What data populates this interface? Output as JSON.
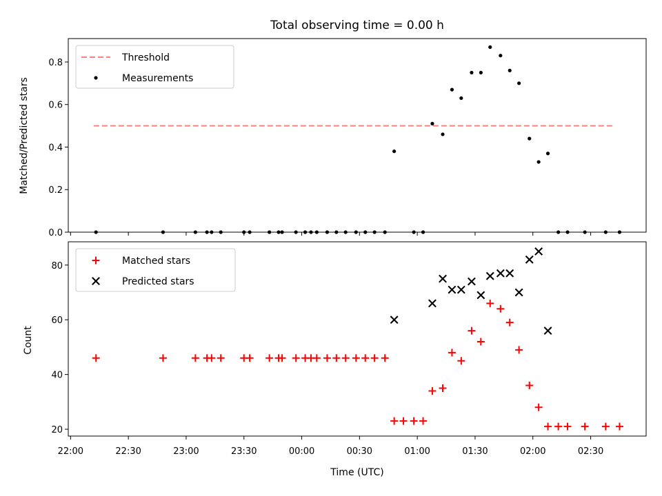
{
  "chart_data": [
    {
      "type": "scatter",
      "title": "Total observing time = 0.00 h",
      "xlabel": "",
      "ylabel": "Matched/Predicted stars",
      "x_unit": "time of day (UTC), hours continuing past midnight",
      "xlim": [
        21.98,
        26.98
      ],
      "ylim": [
        0,
        0.91
      ],
      "yticks": [
        "0.0",
        "0.2",
        "0.4",
        "0.6",
        "0.8"
      ],
      "legend": {
        "position": "top-left",
        "entries": [
          "Threshold",
          "Measurements"
        ]
      },
      "threshold": {
        "name": "Threshold",
        "value": 0.5,
        "x_range": [
          22.2,
          26.7
        ],
        "color": "#ff7f7f",
        "style": "dashed"
      },
      "series": [
        {
          "name": "Measurements",
          "color": "#000000",
          "marker": "dot",
          "points": [
            [
              22.22,
              0.0
            ],
            [
              22.8,
              0.0
            ],
            [
              23.08,
              0.0
            ],
            [
              23.18,
              0.0
            ],
            [
              23.22,
              0.0
            ],
            [
              23.3,
              0.0
            ],
            [
              23.5,
              0.0
            ],
            [
              23.55,
              0.0
            ],
            [
              23.72,
              0.0
            ],
            [
              23.8,
              0.0
            ],
            [
              23.83,
              0.0
            ],
            [
              23.95,
              0.0
            ],
            [
              24.03,
              0.0
            ],
            [
              24.08,
              0.0
            ],
            [
              24.13,
              0.0
            ],
            [
              24.22,
              0.0
            ],
            [
              24.3,
              0.0
            ],
            [
              24.38,
              0.0
            ],
            [
              24.47,
              0.0
            ],
            [
              24.55,
              0.0
            ],
            [
              24.63,
              0.0
            ],
            [
              24.72,
              0.0
            ],
            [
              24.8,
              0.38
            ],
            [
              24.97,
              0.0
            ],
            [
              25.05,
              0.0
            ],
            [
              25.13,
              0.51
            ],
            [
              25.22,
              0.46
            ],
            [
              25.3,
              0.67
            ],
            [
              25.38,
              0.63
            ],
            [
              25.47,
              0.75
            ],
            [
              25.55,
              0.75
            ],
            [
              25.63,
              0.87
            ],
            [
              25.72,
              0.83
            ],
            [
              25.8,
              0.76
            ],
            [
              25.88,
              0.7
            ],
            [
              25.97,
              0.44
            ],
            [
              26.05,
              0.33
            ],
            [
              26.13,
              0.37
            ],
            [
              26.22,
              0.0
            ],
            [
              26.3,
              0.0
            ],
            [
              26.45,
              0.0
            ],
            [
              26.63,
              0.0
            ],
            [
              26.75,
              0.0
            ]
          ]
        }
      ]
    },
    {
      "type": "scatter",
      "title": "",
      "xlabel": "Time (UTC)",
      "ylabel": "Count",
      "x_unit": "time of day (UTC), hours continuing past midnight",
      "xlim": [
        21.98,
        26.98
      ],
      "ylim": [
        17.5,
        88.5
      ],
      "yticks": [
        "20",
        "40",
        "60",
        "80"
      ],
      "xticks": [
        {
          "value": 22.0,
          "label": "22:00"
        },
        {
          "value": 22.5,
          "label": "22:30"
        },
        {
          "value": 23.0,
          "label": "23:00"
        },
        {
          "value": 23.5,
          "label": "23:30"
        },
        {
          "value": 24.0,
          "label": "00:00"
        },
        {
          "value": 24.5,
          "label": "00:30"
        },
        {
          "value": 25.0,
          "label": "01:00"
        },
        {
          "value": 25.5,
          "label": "01:30"
        },
        {
          "value": 26.0,
          "label": "02:00"
        },
        {
          "value": 26.5,
          "label": "02:30"
        }
      ],
      "legend": {
        "position": "top-left",
        "entries": [
          "Matched stars",
          "Predicted stars"
        ]
      },
      "series": [
        {
          "name": "Matched stars",
          "color": "#ff0000",
          "marker": "plus",
          "points": [
            [
              22.22,
              46
            ],
            [
              22.8,
              46
            ],
            [
              23.08,
              46
            ],
            [
              23.18,
              46
            ],
            [
              23.22,
              46
            ],
            [
              23.3,
              46
            ],
            [
              23.5,
              46
            ],
            [
              23.55,
              46
            ],
            [
              23.72,
              46
            ],
            [
              23.8,
              46
            ],
            [
              23.83,
              46
            ],
            [
              23.95,
              46
            ],
            [
              24.03,
              46
            ],
            [
              24.08,
              46
            ],
            [
              24.13,
              46
            ],
            [
              24.22,
              46
            ],
            [
              24.3,
              46
            ],
            [
              24.38,
              46
            ],
            [
              24.47,
              46
            ],
            [
              24.55,
              46
            ],
            [
              24.63,
              46
            ],
            [
              24.72,
              46
            ],
            [
              24.8,
              23
            ],
            [
              24.88,
              23
            ],
            [
              24.97,
              23
            ],
            [
              25.05,
              23
            ],
            [
              25.13,
              34
            ],
            [
              25.22,
              35
            ],
            [
              25.3,
              48
            ],
            [
              25.38,
              45
            ],
            [
              25.47,
              56
            ],
            [
              25.55,
              52
            ],
            [
              25.63,
              66
            ],
            [
              25.72,
              64
            ],
            [
              25.8,
              59
            ],
            [
              25.88,
              49
            ],
            [
              25.97,
              36
            ],
            [
              26.05,
              28
            ],
            [
              26.13,
              21
            ],
            [
              26.22,
              21
            ],
            [
              26.3,
              21
            ],
            [
              26.45,
              21
            ],
            [
              26.63,
              21
            ],
            [
              26.75,
              21
            ]
          ]
        },
        {
          "name": "Predicted stars",
          "color": "#000000",
          "marker": "x",
          "points": [
            [
              24.8,
              60
            ],
            [
              25.13,
              66
            ],
            [
              25.22,
              75
            ],
            [
              25.3,
              71
            ],
            [
              25.38,
              71
            ],
            [
              25.47,
              74
            ],
            [
              25.55,
              69
            ],
            [
              25.63,
              76
            ],
            [
              25.72,
              77
            ],
            [
              25.8,
              77
            ],
            [
              25.88,
              70
            ],
            [
              25.97,
              82
            ],
            [
              26.05,
              85
            ],
            [
              26.13,
              56
            ]
          ]
        }
      ]
    }
  ]
}
